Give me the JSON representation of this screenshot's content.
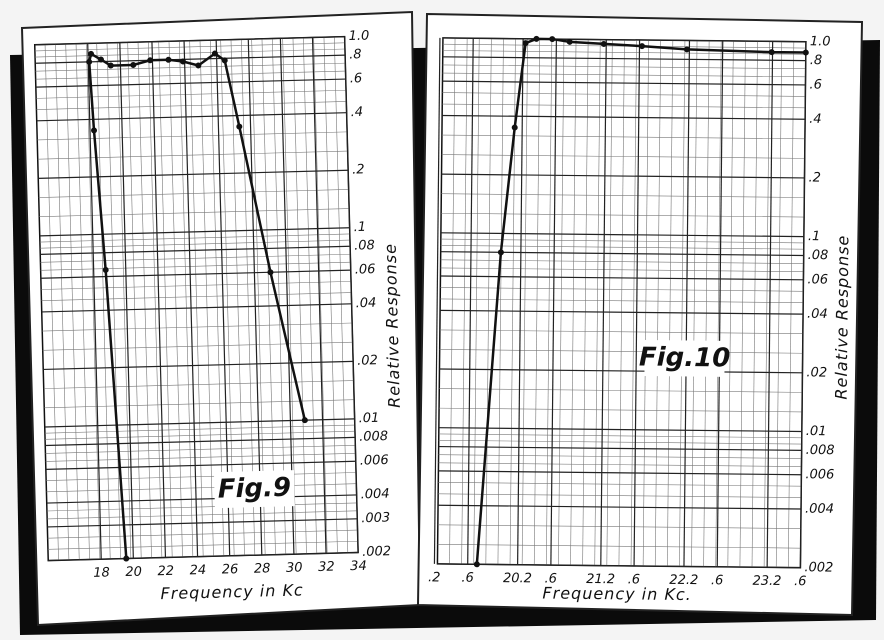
{
  "chart_data": [
    {
      "type": "line",
      "annotation": "Fig.9",
      "xlabel": "Frequency in Kc",
      "ylabel": "Relative Response",
      "x": [
        19.56,
        18.75,
        18.25,
        18.06,
        18.19,
        18.8,
        19.4,
        20.8,
        21.86,
        23,
        23.9,
        24.85,
        25.9,
        26.5,
        27.3,
        29,
        30.9
      ],
      "values": [
        0.002,
        0.065,
        0.35,
        0.8,
        0.88,
        0.82,
        0.76,
        0.76,
        0.8,
        0.8,
        0.78,
        0.74,
        0.85,
        0.78,
        0.35,
        0.06,
        0.01
      ],
      "color": "#111",
      "log_y": true,
      "grid": true,
      "xlim": [
        18,
        34
      ],
      "xticks": [
        18,
        20,
        22,
        24,
        26,
        28,
        30,
        32,
        34
      ],
      "ylim": [
        0.002,
        1
      ],
      "yticks": [
        {
          "value": 1,
          "label": "1.0"
        },
        {
          "value": 0.8,
          "label": ".8"
        },
        {
          "value": 0.6,
          "label": ".6"
        },
        {
          "value": 0.4,
          "label": ".4"
        },
        {
          "value": 0.2,
          "label": ".2"
        },
        {
          "value": 0.1,
          "label": ".1"
        },
        {
          "value": 0.08,
          "label": ".08"
        },
        {
          "value": 0.06,
          "label": ".06"
        },
        {
          "value": 0.04,
          "label": ".04"
        },
        {
          "value": 0.02,
          "label": ".02"
        },
        {
          "value": 0.01,
          "label": ".01"
        },
        {
          "value": 0.008,
          "label": ".008"
        },
        {
          "value": 0.006,
          "label": ".006"
        },
        {
          "value": 0.004,
          "label": ".004"
        },
        {
          "value": 0.003,
          "label": ".003"
        },
        {
          "value": 0.002,
          "label": ".002"
        }
      ]
    },
    {
      "type": "line",
      "annotation": "Fig.10",
      "xlabel": "Frequency in Kc.",
      "ylabel": "Relative Response",
      "x": [
        19.71,
        19.96,
        20.11,
        20.23,
        20.36,
        20.55,
        20.76,
        21.17,
        21.63,
        22.17,
        23.19,
        23.6
      ],
      "values": [
        0.002,
        0.08,
        0.35,
        0.95,
        1.0,
        1.0,
        0.97,
        0.95,
        0.93,
        0.9,
        0.88,
        0.88
      ],
      "color": "#111",
      "log_y": true,
      "grid": true,
      "xlim": [
        19.2,
        23.6
      ],
      "xticks": [
        {
          "value": 19.2,
          "label": ".2"
        },
        {
          "value": 19.6,
          "label": ".6"
        },
        {
          "value": 20.2,
          "label": "20.2"
        },
        {
          "value": 20.6,
          "label": ".6"
        },
        {
          "value": 21.2,
          "label": "21.2"
        },
        {
          "value": 21.6,
          "label": ".6"
        },
        {
          "value": 22.2,
          "label": "22.2"
        },
        {
          "value": 22.6,
          "label": ".6"
        },
        {
          "value": 23.2,
          "label": "23.2"
        },
        {
          "value": 23.6,
          "label": ".6"
        }
      ],
      "ylim": [
        0.002,
        1
      ],
      "yticks": [
        {
          "value": 1,
          "label": "1.0"
        },
        {
          "value": 0.8,
          "label": ".8"
        },
        {
          "value": 0.6,
          "label": ".6"
        },
        {
          "value": 0.4,
          "label": ".4"
        },
        {
          "value": 0.2,
          "label": ".2"
        },
        {
          "value": 0.1,
          "label": ".1"
        },
        {
          "value": 0.08,
          "label": ".08"
        },
        {
          "value": 0.06,
          "label": ".06"
        },
        {
          "value": 0.04,
          "label": ".04"
        },
        {
          "value": 0.02,
          "label": ".02"
        },
        {
          "value": 0.01,
          "label": ".01"
        },
        {
          "value": 0.008,
          "label": ".008"
        },
        {
          "value": 0.006,
          "label": ".006"
        },
        {
          "value": 0.004,
          "label": ".004"
        },
        {
          "value": 0.002,
          "label": ".002"
        }
      ]
    }
  ]
}
